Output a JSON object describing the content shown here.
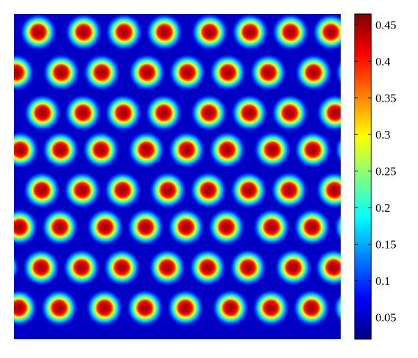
{
  "chart_data": {
    "type": "heatmap",
    "title": "",
    "xlabel": "",
    "ylabel": "",
    "colormap": "jet",
    "axes_visible": false,
    "colorbar": {
      "range": [
        0.02,
        0.465
      ],
      "ticks": [
        0.05,
        0.1,
        0.15,
        0.2,
        0.25,
        0.3,
        0.35,
        0.4,
        0.45
      ],
      "tick_labels": [
        "0.05",
        "0.1",
        "0.15",
        "0.2",
        "0.25",
        "0.3",
        "0.35",
        "0.4",
        "0.45"
      ],
      "position": "right"
    },
    "field": {
      "pattern": "hexagonal array of concentration spots",
      "background_value": 0.05,
      "spot_peak_value": 0.45
    }
  }
}
